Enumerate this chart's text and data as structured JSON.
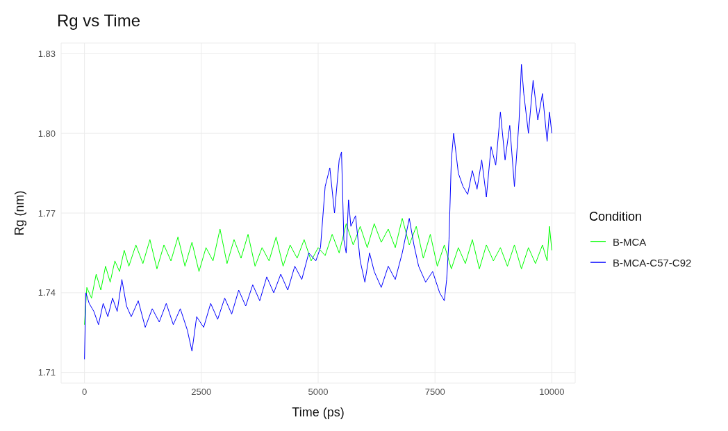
{
  "chart_data": {
    "type": "line",
    "title": "Rg vs Time",
    "xlabel": "Time (ps)",
    "ylabel": "Rg (nm)",
    "legend_title": "Condition",
    "legend": "right",
    "grid": true,
    "marker": "none",
    "line_style": "solid",
    "xlim": [
      -500,
      10500
    ],
    "ylim": [
      1.706,
      1.834
    ],
    "xticks": [
      0,
      2500,
      5000,
      7500,
      10000
    ],
    "yticks": [
      1.71,
      1.74,
      1.77,
      {
        "value": 1.8,
        "label": "1.80"
      },
      1.83
    ],
    "series": [
      {
        "name": "B-MCA",
        "color": "#00ff00",
        "x": [
          0,
          50,
          150,
          250,
          350,
          450,
          550,
          650,
          750,
          850,
          950,
          1100,
          1250,
          1400,
          1550,
          1700,
          1850,
          2000,
          2150,
          2300,
          2450,
          2600,
          2750,
          2900,
          3050,
          3200,
          3350,
          3500,
          3650,
          3800,
          3950,
          4100,
          4250,
          4400,
          4550,
          4700,
          4850,
          5000,
          5150,
          5300,
          5450,
          5600,
          5750,
          5900,
          6050,
          6200,
          6350,
          6500,
          6650,
          6800,
          6950,
          7100,
          7250,
          7400,
          7550,
          7700,
          7850,
          8000,
          8150,
          8300,
          8450,
          8600,
          8750,
          8900,
          9050,
          9200,
          9350,
          9500,
          9650,
          9800,
          9900,
          9950,
          10000
        ],
        "values": [
          1.728,
          1.742,
          1.738,
          1.747,
          1.741,
          1.75,
          1.744,
          1.752,
          1.748,
          1.756,
          1.75,
          1.758,
          1.751,
          1.76,
          1.749,
          1.758,
          1.752,
          1.761,
          1.75,
          1.759,
          1.748,
          1.757,
          1.752,
          1.764,
          1.751,
          1.76,
          1.753,
          1.762,
          1.75,
          1.757,
          1.752,
          1.761,
          1.75,
          1.758,
          1.753,
          1.76,
          1.752,
          1.757,
          1.754,
          1.762,
          1.755,
          1.766,
          1.758,
          1.765,
          1.757,
          1.766,
          1.759,
          1.764,
          1.757,
          1.768,
          1.758,
          1.765,
          1.753,
          1.762,
          1.75,
          1.758,
          1.749,
          1.757,
          1.751,
          1.76,
          1.749,
          1.758,
          1.752,
          1.757,
          1.75,
          1.758,
          1.749,
          1.757,
          1.751,
          1.758,
          1.752,
          1.765,
          1.756
        ]
      },
      {
        "name": "B-MCA-C57-C92",
        "color": "#0000ff",
        "x": [
          0,
          30,
          100,
          200,
          300,
          400,
          500,
          600,
          700,
          800,
          900,
          1000,
          1150,
          1300,
          1450,
          1600,
          1750,
          1900,
          2050,
          2200,
          2300,
          2400,
          2550,
          2700,
          2850,
          3000,
          3150,
          3300,
          3450,
          3600,
          3750,
          3900,
          4050,
          4200,
          4350,
          4500,
          4650,
          4800,
          4950,
          5050,
          5150,
          5250,
          5350,
          5450,
          5500,
          5550,
          5600,
          5650,
          5700,
          5800,
          5900,
          6000,
          6100,
          6200,
          6350,
          6500,
          6650,
          6800,
          6950,
          7050,
          7150,
          7300,
          7450,
          7600,
          7700,
          7750,
          7800,
          7850,
          7900,
          8000,
          8100,
          8200,
          8300,
          8400,
          8500,
          8600,
          8700,
          8800,
          8900,
          9000,
          9100,
          9200,
          9300,
          9350,
          9400,
          9500,
          9600,
          9700,
          9800,
          9900,
          9950,
          10000
        ],
        "values": [
          1.715,
          1.74,
          1.736,
          1.733,
          1.728,
          1.736,
          1.731,
          1.738,
          1.733,
          1.745,
          1.735,
          1.731,
          1.737,
          1.727,
          1.734,
          1.729,
          1.736,
          1.728,
          1.734,
          1.726,
          1.718,
          1.731,
          1.727,
          1.736,
          1.73,
          1.738,
          1.732,
          1.741,
          1.735,
          1.743,
          1.737,
          1.746,
          1.74,
          1.747,
          1.741,
          1.75,
          1.745,
          1.755,
          1.752,
          1.757,
          1.78,
          1.787,
          1.77,
          1.79,
          1.793,
          1.76,
          1.755,
          1.775,
          1.765,
          1.769,
          1.752,
          1.744,
          1.755,
          1.748,
          1.742,
          1.75,
          1.745,
          1.755,
          1.768,
          1.758,
          1.75,
          1.744,
          1.748,
          1.74,
          1.737,
          1.745,
          1.76,
          1.79,
          1.8,
          1.785,
          1.78,
          1.777,
          1.786,
          1.779,
          1.79,
          1.776,
          1.795,
          1.788,
          1.808,
          1.79,
          1.803,
          1.78,
          1.805,
          1.826,
          1.815,
          1.8,
          1.82,
          1.805,
          1.815,
          1.797,
          1.808,
          1.8
        ]
      }
    ]
  }
}
